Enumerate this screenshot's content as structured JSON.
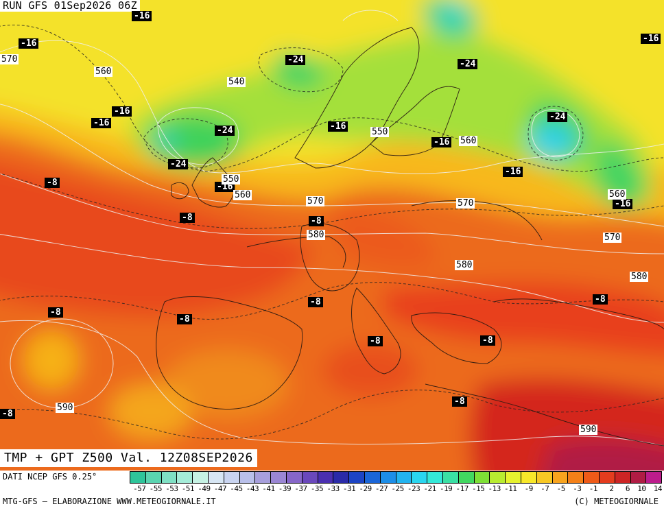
{
  "header": {
    "run": "RUN GFS 01Sep2026 06Z",
    "valid": "TMP + GPT Z500 Val. 12Z08SEP2026"
  },
  "temp_labels": [
    "-16",
    "-16",
    "-16",
    "-16",
    "-24",
    "-16",
    "-24",
    "-16",
    "-24",
    "-16",
    "-24",
    "-16",
    "-24",
    "-16",
    "-8",
    "-16",
    "-8",
    "-8",
    "-8",
    "-8",
    "-8",
    "-8",
    "-8",
    "-8",
    "-8",
    "-8",
    "-8"
  ],
  "gpt_labels": [
    "570",
    "560",
    "540",
    "550",
    "560",
    "550",
    "560",
    "570",
    "570",
    "580",
    "570",
    "560",
    "570",
    "580",
    "580",
    "590",
    "590"
  ],
  "colorscale": {
    "labels": [
      "-57",
      "-55",
      "-53",
      "-51",
      "-49",
      "-47",
      "-45",
      "-43",
      "-41",
      "-39",
      "-37",
      "-35",
      "-33",
      "-31",
      "-29",
      "-27",
      "-25",
      "-23",
      "-21",
      "-19",
      "-17",
      "-15",
      "-13",
      "-11",
      "-9",
      "-7",
      "-5",
      "-3",
      "-1",
      "2",
      "6",
      "10",
      "14"
    ],
    "colors": [
      "#2ec59a",
      "#5ad4b0",
      "#7fe0c4",
      "#a4ecd8",
      "#c6f2e4",
      "#d7e6f4",
      "#c9d4f0",
      "#b9c0ea",
      "#a79fdc",
      "#9a86d4",
      "#8666c8",
      "#6a48bc",
      "#4a2fb0",
      "#2a2aa8",
      "#1c44c4",
      "#1a66d8",
      "#1c8ee8",
      "#22b4f0",
      "#2ad6f0",
      "#34e8d8",
      "#3ae0a4",
      "#42d860",
      "#7ee036",
      "#b8ec30",
      "#e6f22e",
      "#f8e82a",
      "#f8c824",
      "#f8a41e",
      "#f48018",
      "#ee5a18",
      "#e43c1e",
      "#cc2424",
      "#b01c44",
      "#bc1c8c"
    ],
    "source": "DATI NCEP GFS 0.25°"
  },
  "footer": {
    "left": "MTG-GFS — ELABORAZIONE WWW.METEOGIORNALE.IT",
    "right": "(C) METEOGIORNALE"
  }
}
